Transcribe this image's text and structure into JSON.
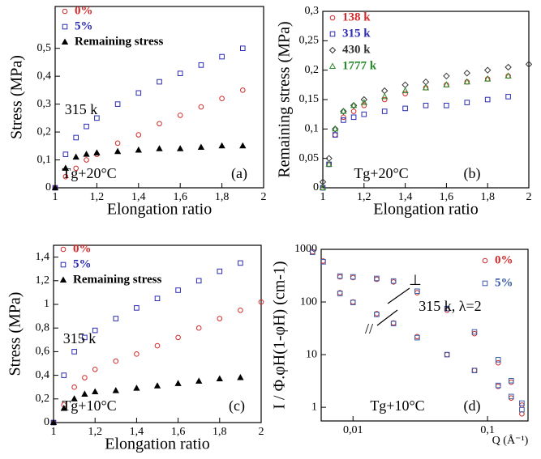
{
  "chart_data": [
    {
      "type": "scatter",
      "xlabel": "Elongation ratio",
      "ylabel": "Stress (MPa)",
      "xlim": [
        1,
        2
      ],
      "ylim": [
        0,
        0.65
      ],
      "xticks": [
        1,
        {
          "value": 1.2,
          "label": "1,2"
        },
        {
          "value": 1.4,
          "label": "1,4"
        },
        {
          "value": 1.6,
          "label": "1,6"
        },
        {
          "value": 1.8,
          "label": "1,8"
        },
        2
      ],
      "yticks": [
        0,
        {
          "value": 0.1,
          "label": "0,1"
        },
        {
          "value": 0.2,
          "label": "0,2"
        },
        {
          "value": 0.3,
          "label": "0,3"
        },
        {
          "value": 0.4,
          "label": "0,4"
        },
        {
          "value": 0.5,
          "label": "0,5"
        }
      ],
      "annotations": [
        "315 k",
        "Tg+20°C",
        "(a)"
      ],
      "x": [
        1.0,
        1.05,
        1.1,
        1.15,
        1.2,
        1.3,
        1.4,
        1.5,
        1.6,
        1.7,
        1.8,
        1.9
      ],
      "series": [
        {
          "name": "0%",
          "color": "#d42a2a",
          "marker": "circle",
          "values": [
            0,
            0.04,
            0.07,
            0.1,
            0.12,
            0.16,
            0.19,
            0.23,
            0.26,
            0.29,
            0.32,
            0.35
          ]
        },
        {
          "name": "5%",
          "color": "#2a2ab4",
          "marker": "square",
          "values": [
            0,
            0.12,
            0.18,
            0.22,
            0.25,
            0.3,
            0.34,
            0.38,
            0.41,
            0.44,
            0.47,
            0.5
          ]
        },
        {
          "name": "Remaining stress",
          "color": "#000000",
          "marker": "triangle",
          "filled": true,
          "values": [
            0,
            0.07,
            0.11,
            0.12,
            0.125,
            0.13,
            0.135,
            0.14,
            0.14,
            0.145,
            0.15,
            0.15
          ]
        }
      ]
    },
    {
      "type": "scatter",
      "xlabel": "Elongation ratio",
      "ylabel": "Remaining stress (MPa)",
      "xlim": [
        1,
        2
      ],
      "ylim": [
        0,
        0.3
      ],
      "xticks": [
        1,
        {
          "value": 1.2,
          "label": "1,2"
        },
        {
          "value": 1.4,
          "label": "1,4"
        },
        {
          "value": 1.6,
          "label": "1,6"
        },
        {
          "value": 1.8,
          "label": "1,8"
        },
        2
      ],
      "yticks": [
        0,
        {
          "value": 0.05,
          "label": "0,05"
        },
        {
          "value": 0.1,
          "label": "0,1"
        },
        {
          "value": 0.15,
          "label": "0,15"
        },
        {
          "value": 0.2,
          "label": "0,2"
        },
        {
          "value": 0.25,
          "label": "0,25"
        },
        {
          "value": 0.3,
          "label": "0,3"
        }
      ],
      "annotations": [
        "Tg+20°C",
        "(b)"
      ],
      "x": [
        1.0,
        1.03,
        1.06,
        1.1,
        1.15,
        1.2,
        1.3,
        1.4,
        1.5,
        1.6,
        1.7,
        1.8,
        1.9,
        2.0
      ],
      "series": [
        {
          "name": "138 k",
          "color": "#d42a2a",
          "marker": "circle",
          "values": [
            0,
            0.04,
            0.09,
            0.12,
            0.13,
            0.14,
            0.15,
            0.16,
            0.17,
            0.175,
            0.18,
            0.185,
            0.19,
            null
          ]
        },
        {
          "name": "315 k",
          "color": "#2a2ab4",
          "marker": "square",
          "values": [
            0,
            0.04,
            0.09,
            0.115,
            0.12,
            0.125,
            0.13,
            0.135,
            0.14,
            0.14,
            0.145,
            0.15,
            0.155,
            null
          ]
        },
        {
          "name": "430 k",
          "color": "#333333",
          "marker": "diamond",
          "values": [
            0.01,
            0.05,
            0.1,
            0.13,
            0.14,
            0.15,
            0.165,
            0.175,
            0.18,
            0.19,
            0.195,
            0.2,
            0.205,
            0.21
          ]
        },
        {
          "name": "1777 k",
          "color": "#2a8a2a",
          "marker": "triangle",
          "values": [
            0,
            0.04,
            0.1,
            0.13,
            0.14,
            0.145,
            0.155,
            0.165,
            0.17,
            0.175,
            0.18,
            0.185,
            0.19,
            null
          ]
        }
      ]
    },
    {
      "type": "scatter",
      "xlabel": "Elongation ratio",
      "ylabel": "Stress (MPa)",
      "xlim": [
        1,
        2
      ],
      "ylim": [
        0,
        1.5
      ],
      "xticks": [
        1,
        {
          "value": 1.2,
          "label": "1,2"
        },
        {
          "value": 1.4,
          "label": "1,4"
        },
        {
          "value": 1.6,
          "label": "1,6"
        },
        {
          "value": 1.8,
          "label": "1,8"
        },
        2
      ],
      "yticks": [
        0,
        {
          "value": 0.2,
          "label": "0,2"
        },
        {
          "value": 0.4,
          "label": "0,4"
        },
        {
          "value": 0.6,
          "label": "0,6"
        },
        {
          "value": 0.8,
          "label": "0,8"
        },
        1,
        {
          "value": 1.2,
          "label": "1,2"
        },
        {
          "value": 1.4,
          "label": "1,4"
        }
      ],
      "annotations": [
        "315 k",
        "Tg+10°C",
        "(c)"
      ],
      "x": [
        1.0,
        1.05,
        1.1,
        1.15,
        1.2,
        1.3,
        1.4,
        1.5,
        1.6,
        1.7,
        1.8,
        1.9,
        2.0
      ],
      "series": [
        {
          "name": "0%",
          "color": "#d42a2a",
          "marker": "circle",
          "values": [
            0,
            0.15,
            0.3,
            0.38,
            0.45,
            0.52,
            0.58,
            0.65,
            0.72,
            0.8,
            0.88,
            0.95,
            1.02
          ]
        },
        {
          "name": "5%",
          "color": "#2a2ab4",
          "marker": "square",
          "values": [
            0,
            0.4,
            0.6,
            0.72,
            0.78,
            0.88,
            0.97,
            1.05,
            1.12,
            1.2,
            1.28,
            1.35,
            null
          ]
        },
        {
          "name": "Remaining stress",
          "color": "#000000",
          "marker": "triangle",
          "filled": true,
          "values": [
            0,
            0.12,
            0.2,
            0.24,
            0.26,
            0.27,
            0.29,
            0.31,
            0.33,
            0.35,
            0.37,
            0.38,
            null
          ]
        }
      ]
    },
    {
      "type": "scatter",
      "xlabel": "Q (Å⁻¹)",
      "ylabel": "I / Φ.φH(1-φH) (cm-1)",
      "xlog": true,
      "ylog": true,
      "xlim": [
        0.0058,
        0.2
      ],
      "ylim": [
        0.55,
        1000
      ],
      "xticks": [
        {
          "value": 0.01,
          "label": "0,01"
        },
        {
          "value": 0.1,
          "label": "0,1"
        }
      ],
      "yticks": [
        1,
        10,
        100,
        1000
      ],
      "annotations": [
        "⊥",
        "//",
        "315 k, λ=2",
        "Tg+10°C",
        "(d)"
      ],
      "series": [
        {
          "name": "0%",
          "color": "#d42a2a",
          "marker": "circle",
          "branches": [
            {
              "x": [
                0.005,
                0.006,
                0.008,
                0.01,
                0.015,
                0.02,
                0.03,
                0.05,
                0.08,
                0.12,
                0.15,
                0.18
              ],
              "values": [
                900,
                600,
                300,
                290,
                270,
                240,
                150,
                70,
                25,
                7,
                3,
                1.1
              ]
            },
            {
              "x": [
                0.008,
                0.01,
                0.015,
                0.02,
                0.03,
                0.05,
                0.08,
                0.12,
                0.15,
                0.18
              ],
              "values": [
                150,
                100,
                60,
                40,
                22,
                10,
                5,
                2.5,
                1.5,
                0.75
              ]
            }
          ]
        },
        {
          "name": "5%",
          "color": "#3a5aa8",
          "marker": "square",
          "branches": [
            {
              "x": [
                0.005,
                0.006,
                0.008,
                0.01,
                0.015,
                0.02,
                0.03,
                0.05,
                0.08,
                0.12,
                0.15,
                0.18
              ],
              "values": [
                880,
                580,
                310,
                300,
                280,
                250,
                160,
                75,
                27,
                8,
                3.2,
                1.2
              ]
            },
            {
              "x": [
                0.008,
                0.01,
                0.015,
                0.02,
                0.03,
                0.05,
                0.08,
                0.12,
                0.15,
                0.18
              ],
              "values": [
                145,
                98,
                58,
                39,
                21,
                10,
                5,
                2.6,
                1.6,
                0.9
              ]
            }
          ]
        }
      ]
    }
  ]
}
